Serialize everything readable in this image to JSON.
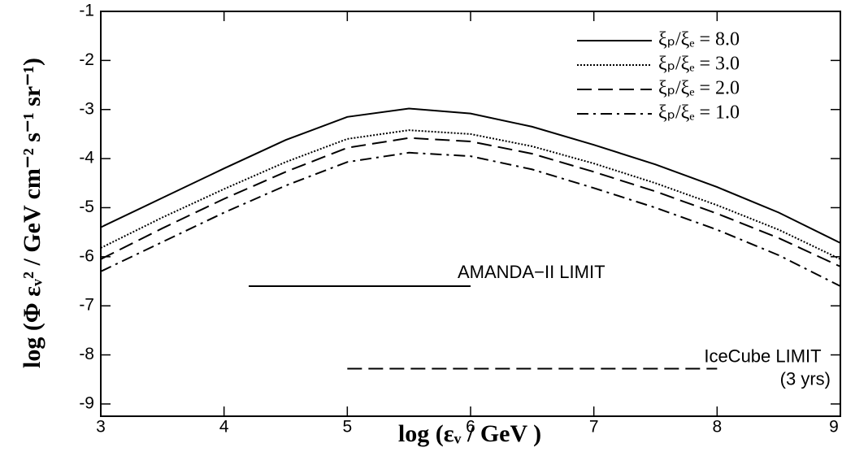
{
  "chart_data": {
    "type": "line",
    "x_label": "log (εᵥ / GeV )",
    "y_label": "log (Φ εᵥ² / GeV cm⁻² s⁻¹ sr⁻¹)",
    "x": [
      3,
      3.5,
      4,
      4.5,
      5,
      5.5,
      6,
      6.5,
      7,
      7.5,
      8,
      8.5,
      9
    ],
    "series": [
      {
        "name": "ξₚ/ξₑ = 8.0",
        "color": "#000000",
        "dash": "none",
        "values": [
          -5.4,
          -4.8,
          -4.2,
          -3.62,
          -3.15,
          -2.98,
          -3.08,
          -3.35,
          -3.72,
          -4.12,
          -4.58,
          -5.1,
          -5.72
        ]
      },
      {
        "name": "ξₚ/ξₑ = 3.0",
        "color": "#000000",
        "dash": "2,2",
        "values": [
          -5.82,
          -5.2,
          -4.62,
          -4.07,
          -3.6,
          -3.42,
          -3.5,
          -3.75,
          -4.1,
          -4.5,
          -4.95,
          -5.45,
          -6.05
        ]
      },
      {
        "name": "ξₚ/ξₑ = 2.0",
        "color": "#000000",
        "dash": "18,8",
        "values": [
          -6.05,
          -5.42,
          -4.82,
          -4.27,
          -3.78,
          -3.58,
          -3.65,
          -3.9,
          -4.27,
          -4.67,
          -5.12,
          -5.62,
          -6.2
        ]
      },
      {
        "name": "ξₚ/ξₑ = 1.0",
        "color": "#000000",
        "dash": "14,6,3,6",
        "values": [
          -6.3,
          -5.7,
          -5.1,
          -4.55,
          -4.07,
          -3.88,
          -3.95,
          -4.22,
          -4.6,
          -5.0,
          -5.45,
          -5.97,
          -6.6
        ]
      }
    ],
    "limits": [
      {
        "label": [
          "AMANDA−II LIMIT"
        ],
        "x": [
          4.2,
          6.0
        ],
        "y": -6.6,
        "dash": "none"
      },
      {
        "label": [
          "IceCube LIMIT",
          "(3 yrs)"
        ],
        "x": [
          5.0,
          8.0
        ],
        "y": -8.28,
        "dash": "18,8"
      }
    ],
    "xlim": [
      3,
      9
    ],
    "xticks": [
      3,
      4,
      5,
      6,
      7,
      8,
      9
    ],
    "ylim": [
      -9.25,
      -1
    ],
    "yticks": [
      -1,
      -2,
      -3,
      -4,
      -5,
      -6,
      -7,
      -8,
      -9
    ],
    "legend": "top-right",
    "grid": false
  }
}
